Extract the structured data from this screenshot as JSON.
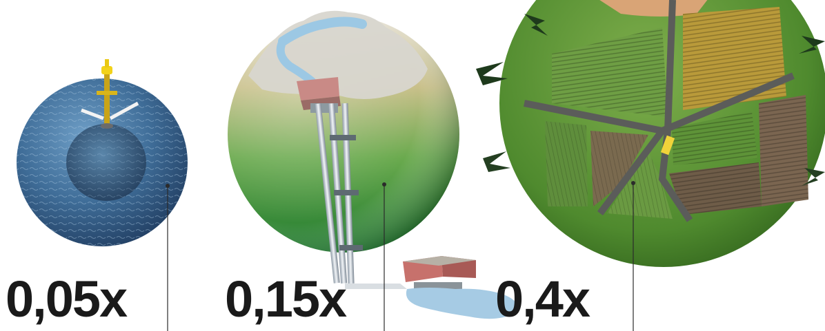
{
  "spheres": [
    {
      "id": "ocean-wave",
      "label": "0,05x"
    },
    {
      "id": "hydropower",
      "label": "0,15x"
    },
    {
      "id": "farmland",
      "label": "0,4x"
    }
  ]
}
